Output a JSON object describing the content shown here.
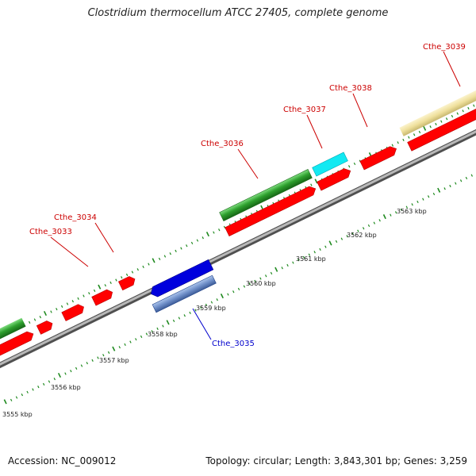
{
  "title": "Clostridium thermocellum ATCC 27405, complete genome",
  "footer": {
    "accession": "Accession: NC_009012",
    "summary": "Topology: circular; Length: 3,843,301 bp; Genes: 3,259"
  },
  "colors": {
    "backbone": "#8a8a8a",
    "tick": "#1f8a1f",
    "label_red": "#cc0000",
    "label_blue": "#0000cc",
    "cds": "#ff0000",
    "green_bar": "#2ea02e",
    "cyan_bar": "#00e5ee",
    "tan_bar": "#f0e2a0",
    "blue_bar": "#0000dd",
    "steel_bar": "#6e8ec8"
  },
  "scale": {
    "labels": [
      "3555 kbp",
      "3556 kbp",
      "3557 kbp",
      "3558 kbp",
      "3559 kbp",
      "3560 kbp",
      "3561 kbp",
      "3562 kbp",
      "3563 kbp"
    ]
  },
  "gene_labels": [
    {
      "text": "Cthe_3033",
      "color": "red"
    },
    {
      "text": "Cthe_3034",
      "color": "red"
    },
    {
      "text": "Cthe_3035",
      "color": "blue"
    },
    {
      "text": "Cthe_3036",
      "color": "red"
    },
    {
      "text": "Cthe_3037",
      "color": "red"
    },
    {
      "text": "Cthe_3038",
      "color": "red"
    },
    {
      "text": "Cthe_3039",
      "color": "red"
    }
  ]
}
